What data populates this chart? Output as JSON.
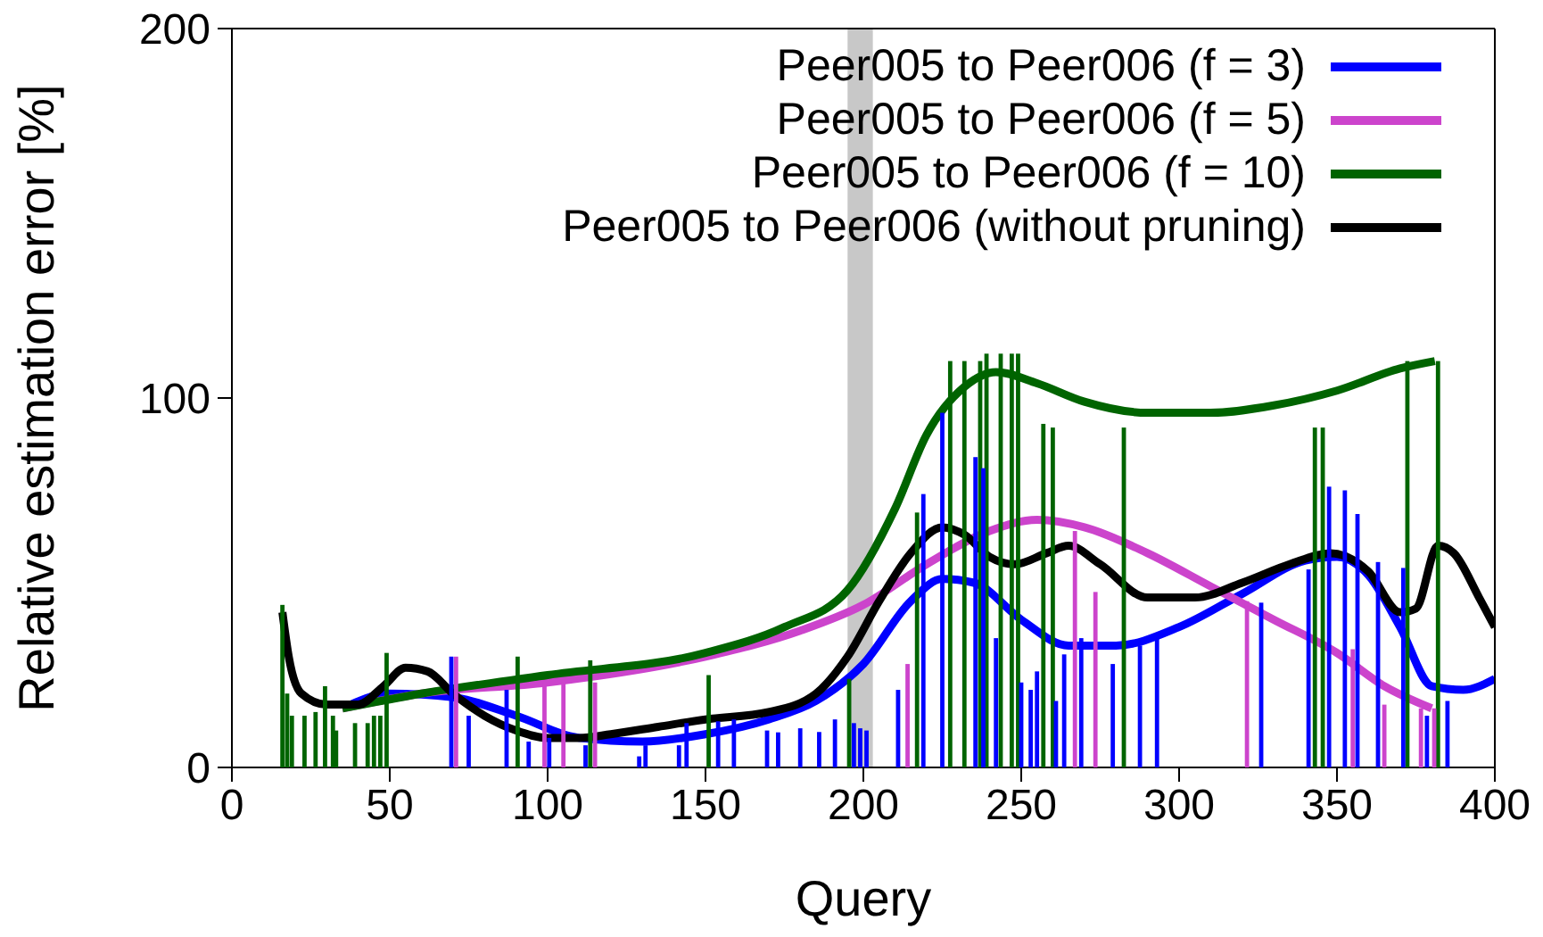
{
  "chart_data": {
    "type": "line",
    "xlabel": "Query",
    "ylabel": "Relative estimation error [%]",
    "xlim": [
      0,
      400
    ],
    "xticks": [
      0,
      50,
      100,
      150,
      200,
      250,
      300,
      350,
      400
    ],
    "ylim": [
      0,
      200
    ],
    "yticks": [
      0,
      100,
      200
    ],
    "legend": "top right",
    "line_style": "solid",
    "bands": [
      {
        "axis": "x",
        "from": 195,
        "to": 203,
        "color": "#c8c8c8"
      }
    ],
    "series": [
      {
        "type": "bar",
        "color": "#006400",
        "x": [
          16,
          17.5,
          19,
          23,
          26.5,
          29.5,
          32,
          33,
          39,
          43,
          45,
          47,
          49,
          90.5,
          113.5,
          151,
          195.5,
          197,
          214,
          217,
          227.5,
          232,
          237,
          239,
          243.5,
          247,
          249,
          257,
          260,
          282.5,
          343,
          345.5,
          372.3,
          382
        ],
        "values": [
          44,
          20,
          14,
          14,
          15,
          22,
          14,
          10,
          12,
          12,
          14,
          14,
          31,
          30,
          29,
          25,
          24,
          null,
          null,
          69,
          110,
          110,
          110,
          112,
          112,
          112,
          112,
          93,
          92,
          92,
          92,
          92,
          110,
          110
        ]
      },
      {
        "type": "bar",
        "color": "#cc44cc",
        "x": [
          71,
          99,
          105,
          115,
          214,
          235.6,
          267,
          273.5,
          321.5,
          347,
          355,
          365,
          376.6,
          380.8
        ],
        "values": [
          30,
          23,
          23,
          23,
          28,
          null,
          64,
          47.5,
          45,
          null,
          32,
          17,
          16,
          16
        ]
      },
      {
        "type": "bar",
        "color": "#0000ff",
        "x": [
          69.5,
          75,
          87,
          94,
          100.5,
          112,
          129,
          131,
          141.6,
          144,
          154,
          159,
          169.5,
          173,
          180,
          186,
          191,
          197,
          199,
          201,
          211,
          219,
          225,
          235.5,
          238,
          242,
          250,
          253,
          255,
          261,
          263.6,
          269,
          279,
          287.6,
          293,
          326,
          341,
          347.5,
          352.5,
          356.5,
          363,
          371,
          378.5,
          385
        ],
        "values": [
          30,
          14,
          21,
          7,
          8,
          6,
          3,
          6,
          6,
          12,
          12.5,
          13,
          10,
          9.5,
          10.6,
          9.6,
          13,
          12,
          10.6,
          10,
          21,
          74,
          96,
          84,
          81,
          35,
          23,
          21,
          26,
          18,
          30.6,
          35,
          28,
          33,
          35,
          44.6,
          53.6,
          76,
          75,
          68.6,
          55.6,
          54,
          14,
          18
        ]
      },
      {
        "name": "Peer005 to Peer006 (f = 3)",
        "color": "#0000ff",
        "x": [
          35,
          50,
          70,
          90,
          110,
          130,
          150,
          170,
          185,
          200,
          215,
          225,
          235,
          250,
          265,
          280,
          300,
          320,
          340,
          350,
          360,
          370,
          380,
          390,
          400
        ],
        "values": [
          16,
          20,
          19,
          14,
          8,
          7,
          9,
          13,
          18,
          28,
          45,
          51,
          50,
          40,
          33,
          33,
          38,
          47,
          56,
          57,
          52,
          38,
          22,
          21,
          24
        ]
      },
      {
        "name": "Peer005 to Peer006 (f = 5)",
        "color": "#cc44cc",
        "x": [
          35,
          60,
          100,
          150,
          180,
          200,
          220,
          240,
          255,
          270,
          290,
          310,
          330,
          350,
          365,
          380
        ],
        "values": [
          16,
          20,
          23,
          30,
          37,
          44,
          55,
          64,
          67,
          65,
          58,
          49,
          40,
          31,
          22,
          16
        ]
      },
      {
        "name": "Peer005 to Peer006 (f = 10)",
        "color": "#006400",
        "x": [
          35,
          60,
          100,
          150,
          175,
          195,
          210,
          220,
          232,
          242,
          255,
          270,
          290,
          310,
          330,
          350,
          370,
          381
        ],
        "values": [
          16,
          20,
          25,
          31,
          38,
          48,
          70,
          90,
          103,
          107,
          104,
          99,
          96,
          96,
          98,
          102,
          108,
          110
        ]
      },
      {
        "name": "Peer005 to Peer006 (without pruning)",
        "color": "#000000",
        "x": [
          16,
          18,
          22,
          30,
          40,
          48,
          55,
          62,
          70,
          80,
          90,
          100,
          110,
          120,
          135,
          150,
          170,
          185,
          195,
          205,
          215,
          225,
          232,
          240,
          248,
          258,
          265,
          275,
          290,
          305,
          320,
          335,
          348,
          360,
          370,
          375,
          382,
          387,
          395,
          400
        ],
        "values": [
          42,
          30,
          20,
          17,
          17,
          22,
          27,
          26,
          20,
          14,
          10,
          8,
          8,
          9,
          11,
          13,
          15,
          20,
          30,
          45,
          58,
          65,
          63,
          57,
          55,
          58,
          60,
          55,
          46,
          46,
          50,
          55,
          58,
          53,
          42,
          43,
          60,
          58,
          46,
          38
        ]
      }
    ]
  }
}
